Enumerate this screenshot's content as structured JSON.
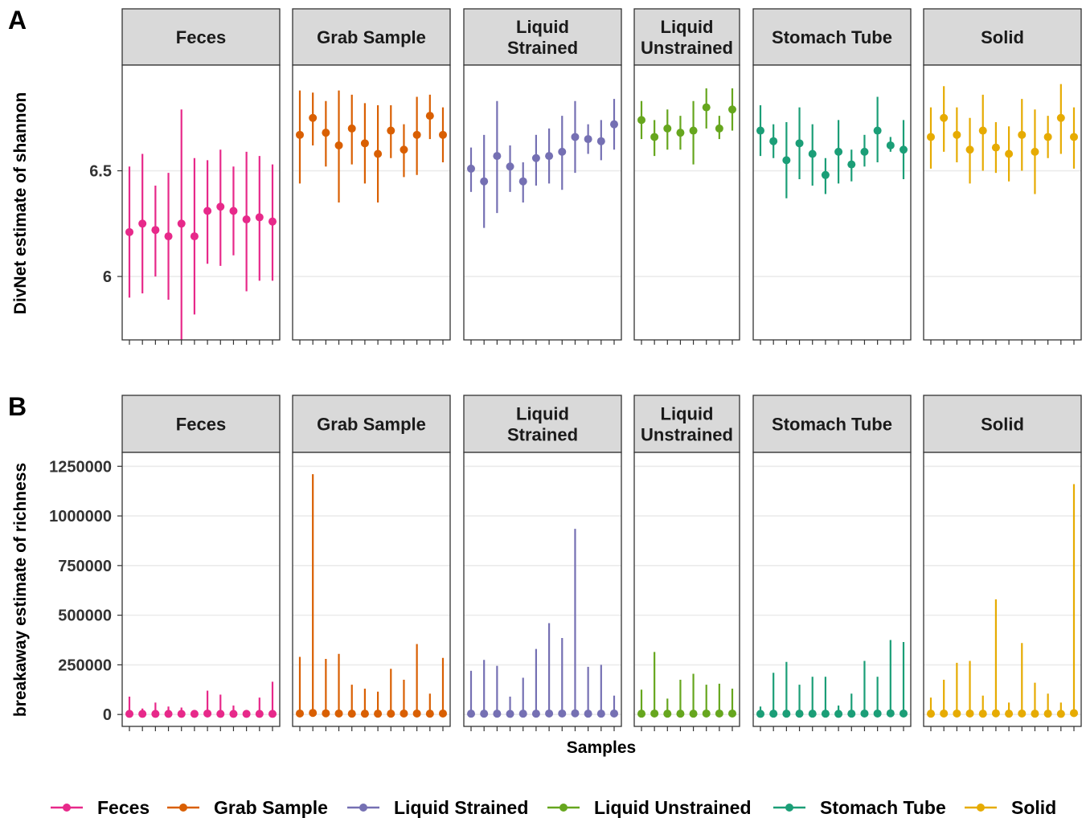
{
  "colors": {
    "Feces": "#E7298A",
    "Grab Sample": "#D95F02",
    "Liquid Strained": "#7570B3",
    "Liquid Unstrained": "#66A61E",
    "Stomach Tube": "#1B9E77",
    "Solid": "#E6AB02"
  },
  "labels": {
    "panel_a": "A",
    "panel_b": "B",
    "xlabel": "Samples",
    "ylabel_a": "DivNet estimate of shannon",
    "ylabel_b": "breakaway estimate of richness"
  },
  "facets": [
    {
      "key": "Feces",
      "lines": [
        "Feces"
      ]
    },
    {
      "key": "Grab Sample",
      "lines": [
        "Grab Sample"
      ]
    },
    {
      "key": "Liquid Strained",
      "lines": [
        "Liquid",
        "Strained"
      ]
    },
    {
      "key": "Liquid Unstrained",
      "lines": [
        "Liquid",
        "Unstrained"
      ]
    },
    {
      "key": "Stomach Tube",
      "lines": [
        "Stomach Tube"
      ]
    },
    {
      "key": "Solid",
      "lines": [
        "Solid"
      ]
    }
  ],
  "legend": {
    "entries": [
      "Feces",
      "Grab Sample",
      "Liquid Strained",
      "Liquid Unstrained",
      "Stomach Tube",
      "Solid"
    ],
    "placement": "bottom"
  },
  "chart_data": [
    {
      "type": "pointrange",
      "panel": "A",
      "ylabel": "DivNet estimate of shannon",
      "xlabel": "",
      "ylim": [
        5.7,
        7.0
      ],
      "yticks": [
        6.0,
        6.5
      ],
      "grid": true,
      "series": [
        {
          "name": "Feces",
          "points": [
            {
              "y": 6.21,
              "lo": 5.9,
              "hi": 6.52
            },
            {
              "y": 6.25,
              "lo": 5.92,
              "hi": 6.58
            },
            {
              "y": 6.22,
              "lo": 6.0,
              "hi": 6.43
            },
            {
              "y": 6.19,
              "lo": 5.89,
              "hi": 6.49
            },
            {
              "y": 6.25,
              "lo": 5.7,
              "hi": 6.79
            },
            {
              "y": 6.19,
              "lo": 5.82,
              "hi": 6.56
            },
            {
              "y": 6.31,
              "lo": 6.06,
              "hi": 6.55
            },
            {
              "y": 6.33,
              "lo": 6.05,
              "hi": 6.6
            },
            {
              "y": 6.31,
              "lo": 6.1,
              "hi": 6.52
            },
            {
              "y": 6.27,
              "lo": 5.93,
              "hi": 6.59
            },
            {
              "y": 6.28,
              "lo": 5.98,
              "hi": 6.57
            },
            {
              "y": 6.26,
              "lo": 5.98,
              "hi": 6.53
            }
          ]
        },
        {
          "name": "Grab Sample",
          "points": [
            {
              "y": 6.67,
              "lo": 6.44,
              "hi": 6.88
            },
            {
              "y": 6.75,
              "lo": 6.62,
              "hi": 6.87
            },
            {
              "y": 6.68,
              "lo": 6.52,
              "hi": 6.83
            },
            {
              "y": 6.62,
              "lo": 6.35,
              "hi": 6.88
            },
            {
              "y": 6.7,
              "lo": 6.53,
              "hi": 6.86
            },
            {
              "y": 6.63,
              "lo": 6.44,
              "hi": 6.82
            },
            {
              "y": 6.58,
              "lo": 6.35,
              "hi": 6.81
            },
            {
              "y": 6.69,
              "lo": 6.56,
              "hi": 6.81
            },
            {
              "y": 6.6,
              "lo": 6.47,
              "hi": 6.72
            },
            {
              "y": 6.67,
              "lo": 6.48,
              "hi": 6.85
            },
            {
              "y": 6.76,
              "lo": 6.65,
              "hi": 6.86
            },
            {
              "y": 6.67,
              "lo": 6.54,
              "hi": 6.8
            }
          ]
        },
        {
          "name": "Liquid Strained",
          "points": [
            {
              "y": 6.51,
              "lo": 6.4,
              "hi": 6.61
            },
            {
              "y": 6.45,
              "lo": 6.23,
              "hi": 6.67
            },
            {
              "y": 6.57,
              "lo": 6.3,
              "hi": 6.83
            },
            {
              "y": 6.52,
              "lo": 6.4,
              "hi": 6.62
            },
            {
              "y": 6.45,
              "lo": 6.35,
              "hi": 6.54
            },
            {
              "y": 6.56,
              "lo": 6.43,
              "hi": 6.67
            },
            {
              "y": 6.57,
              "lo": 6.44,
              "hi": 6.7
            },
            {
              "y": 6.59,
              "lo": 6.41,
              "hi": 6.76
            },
            {
              "y": 6.66,
              "lo": 6.49,
              "hi": 6.83
            },
            {
              "y": 6.65,
              "lo": 6.58,
              "hi": 6.72
            },
            {
              "y": 6.64,
              "lo": 6.55,
              "hi": 6.74
            },
            {
              "y": 6.72,
              "lo": 6.6,
              "hi": 6.84
            }
          ]
        },
        {
          "name": "Liquid Unstrained",
          "points": [
            {
              "y": 6.74,
              "lo": 6.65,
              "hi": 6.83
            },
            {
              "y": 6.66,
              "lo": 6.57,
              "hi": 6.74
            },
            {
              "y": 6.7,
              "lo": 6.6,
              "hi": 6.79
            },
            {
              "y": 6.68,
              "lo": 6.6,
              "hi": 6.76
            },
            {
              "y": 6.69,
              "lo": 6.53,
              "hi": 6.83
            },
            {
              "y": 6.8,
              "lo": 6.7,
              "hi": 6.89
            },
            {
              "y": 6.7,
              "lo": 6.65,
              "hi": 6.76
            },
            {
              "y": 6.79,
              "lo": 6.69,
              "hi": 6.89
            }
          ]
        },
        {
          "name": "Stomach Tube",
          "points": [
            {
              "y": 6.69,
              "lo": 6.57,
              "hi": 6.81
            },
            {
              "y": 6.64,
              "lo": 6.56,
              "hi": 6.72
            },
            {
              "y": 6.55,
              "lo": 6.37,
              "hi": 6.73
            },
            {
              "y": 6.63,
              "lo": 6.46,
              "hi": 6.8
            },
            {
              "y": 6.58,
              "lo": 6.43,
              "hi": 6.72
            },
            {
              "y": 6.48,
              "lo": 6.39,
              "hi": 6.56
            },
            {
              "y": 6.59,
              "lo": 6.44,
              "hi": 6.74
            },
            {
              "y": 6.53,
              "lo": 6.45,
              "hi": 6.6
            },
            {
              "y": 6.59,
              "lo": 6.52,
              "hi": 6.67
            },
            {
              "y": 6.69,
              "lo": 6.54,
              "hi": 6.85
            },
            {
              "y": 6.62,
              "lo": 6.59,
              "hi": 6.66
            },
            {
              "y": 6.6,
              "lo": 6.46,
              "hi": 6.74
            }
          ]
        },
        {
          "name": "Solid",
          "points": [
            {
              "y": 6.66,
              "lo": 6.51,
              "hi": 6.8
            },
            {
              "y": 6.75,
              "lo": 6.59,
              "hi": 6.9
            },
            {
              "y": 6.67,
              "lo": 6.54,
              "hi": 6.8
            },
            {
              "y": 6.6,
              "lo": 6.44,
              "hi": 6.75
            },
            {
              "y": 6.69,
              "lo": 6.5,
              "hi": 6.86
            },
            {
              "y": 6.61,
              "lo": 6.49,
              "hi": 6.73
            },
            {
              "y": 6.58,
              "lo": 6.45,
              "hi": 6.71
            },
            {
              "y": 6.67,
              "lo": 6.5,
              "hi": 6.84
            },
            {
              "y": 6.59,
              "lo": 6.39,
              "hi": 6.79
            },
            {
              "y": 6.66,
              "lo": 6.56,
              "hi": 6.76
            },
            {
              "y": 6.75,
              "lo": 6.58,
              "hi": 6.91
            },
            {
              "y": 6.66,
              "lo": 6.51,
              "hi": 6.8
            }
          ]
        }
      ]
    },
    {
      "type": "pointrange",
      "panel": "B",
      "ylabel": "breakaway estimate of richness",
      "xlabel": "Samples",
      "ylim": [
        -60000,
        1320000
      ],
      "yticks": [
        0,
        250000,
        500000,
        750000,
        1000000,
        1250000
      ],
      "grid": true,
      "series": [
        {
          "name": "Feces",
          "points": [
            {
              "y": 3000,
              "lo": 0,
              "hi": 90000
            },
            {
              "y": 3000,
              "lo": 0,
              "hi": 30000
            },
            {
              "y": 3000,
              "lo": 0,
              "hi": 60000
            },
            {
              "y": 3000,
              "lo": 0,
              "hi": 40000
            },
            {
              "y": 3000,
              "lo": 0,
              "hi": 35000
            },
            {
              "y": 3000,
              "lo": 0,
              "hi": 20000
            },
            {
              "y": 5000,
              "lo": 0,
              "hi": 120000
            },
            {
              "y": 3000,
              "lo": 0,
              "hi": 100000
            },
            {
              "y": 3000,
              "lo": 0,
              "hi": 45000
            },
            {
              "y": 3000,
              "lo": 0,
              "hi": 20000
            },
            {
              "y": 3000,
              "lo": 0,
              "hi": 85000
            },
            {
              "y": 3000,
              "lo": 0,
              "hi": 165000
            }
          ]
        },
        {
          "name": "Grab Sample",
          "points": [
            {
              "y": 5000,
              "lo": 0,
              "hi": 290000
            },
            {
              "y": 8000,
              "lo": 0,
              "hi": 1210000
            },
            {
              "y": 6000,
              "lo": 0,
              "hi": 280000
            },
            {
              "y": 5000,
              "lo": 0,
              "hi": 305000
            },
            {
              "y": 4000,
              "lo": 0,
              "hi": 150000
            },
            {
              "y": 4000,
              "lo": 0,
              "hi": 130000
            },
            {
              "y": 4000,
              "lo": 0,
              "hi": 115000
            },
            {
              "y": 4000,
              "lo": 0,
              "hi": 230000
            },
            {
              "y": 5000,
              "lo": 0,
              "hi": 175000
            },
            {
              "y": 5000,
              "lo": 0,
              "hi": 355000
            },
            {
              "y": 4000,
              "lo": 0,
              "hi": 105000
            },
            {
              "y": 5000,
              "lo": 0,
              "hi": 285000
            }
          ]
        },
        {
          "name": "Liquid Strained",
          "points": [
            {
              "y": 4000,
              "lo": 0,
              "hi": 220000
            },
            {
              "y": 4000,
              "lo": 0,
              "hi": 275000
            },
            {
              "y": 4000,
              "lo": 0,
              "hi": 245000
            },
            {
              "y": 3000,
              "lo": 0,
              "hi": 90000
            },
            {
              "y": 4000,
              "lo": 0,
              "hi": 185000
            },
            {
              "y": 4000,
              "lo": 0,
              "hi": 330000
            },
            {
              "y": 5000,
              "lo": 0,
              "hi": 460000
            },
            {
              "y": 5000,
              "lo": 0,
              "hi": 385000
            },
            {
              "y": 6000,
              "lo": 0,
              "hi": 935000
            },
            {
              "y": 4000,
              "lo": 0,
              "hi": 240000
            },
            {
              "y": 4000,
              "lo": 0,
              "hi": 250000
            },
            {
              "y": 5000,
              "lo": 0,
              "hi": 95000
            }
          ]
        },
        {
          "name": "Liquid Unstrained",
          "points": [
            {
              "y": 4000,
              "lo": 0,
              "hi": 125000
            },
            {
              "y": 5000,
              "lo": 0,
              "hi": 315000
            },
            {
              "y": 4000,
              "lo": 0,
              "hi": 80000
            },
            {
              "y": 4000,
              "lo": 0,
              "hi": 175000
            },
            {
              "y": 4000,
              "lo": 0,
              "hi": 205000
            },
            {
              "y": 5000,
              "lo": 0,
              "hi": 150000
            },
            {
              "y": 5000,
              "lo": 0,
              "hi": 155000
            },
            {
              "y": 5000,
              "lo": 0,
              "hi": 130000
            }
          ]
        },
        {
          "name": "Stomach Tube",
          "points": [
            {
              "y": 3000,
              "lo": 0,
              "hi": 40000
            },
            {
              "y": 4000,
              "lo": 0,
              "hi": 210000
            },
            {
              "y": 4000,
              "lo": 0,
              "hi": 265000
            },
            {
              "y": 4000,
              "lo": 0,
              "hi": 150000
            },
            {
              "y": 4000,
              "lo": 0,
              "hi": 190000
            },
            {
              "y": 4000,
              "lo": 0,
              "hi": 190000
            },
            {
              "y": 3000,
              "lo": 0,
              "hi": 45000
            },
            {
              "y": 4000,
              "lo": 0,
              "hi": 105000
            },
            {
              "y": 5000,
              "lo": 0,
              "hi": 270000
            },
            {
              "y": 5000,
              "lo": 0,
              "hi": 190000
            },
            {
              "y": 6000,
              "lo": 0,
              "hi": 375000
            },
            {
              "y": 5000,
              "lo": 0,
              "hi": 365000
            }
          ]
        },
        {
          "name": "Solid",
          "points": [
            {
              "y": 4000,
              "lo": 0,
              "hi": 85000
            },
            {
              "y": 5000,
              "lo": 0,
              "hi": 175000
            },
            {
              "y": 5000,
              "lo": 0,
              "hi": 260000
            },
            {
              "y": 5000,
              "lo": 0,
              "hi": 270000
            },
            {
              "y": 4000,
              "lo": 0,
              "hi": 95000
            },
            {
              "y": 6000,
              "lo": 0,
              "hi": 580000
            },
            {
              "y": 4000,
              "lo": 0,
              "hi": 60000
            },
            {
              "y": 5000,
              "lo": 0,
              "hi": 360000
            },
            {
              "y": 4000,
              "lo": 0,
              "hi": 160000
            },
            {
              "y": 4000,
              "lo": 0,
              "hi": 105000
            },
            {
              "y": 3000,
              "lo": 0,
              "hi": 60000
            },
            {
              "y": 7000,
              "lo": 0,
              "hi": 1160000
            }
          ]
        }
      ]
    }
  ]
}
